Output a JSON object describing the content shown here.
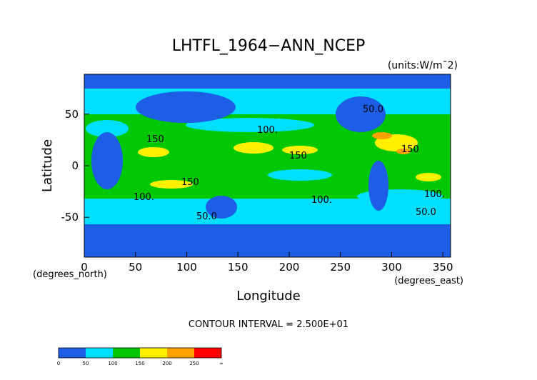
{
  "chart_data": {
    "type": "heatmap",
    "title": "LHTFL_1964−ANN_NCEP",
    "units": "(units:W/m¯2)",
    "xlabel": "Longitude",
    "ylabel": "Latitude",
    "x_units": "(degrees_east)",
    "y_units": "(degrees_north)",
    "xlim": [
      0,
      357.5
    ],
    "ylim": [
      -88,
      88
    ],
    "x_ticks": [
      0,
      50,
      100,
      150,
      200,
      250,
      300,
      350
    ],
    "y_ticks": [
      50,
      0,
      -50
    ],
    "contour_interval_text": "CONTOUR INTERVAL = 2.500E+01",
    "contour_labels": [
      {
        "text": "150",
        "x": 68,
        "y": 26
      },
      {
        "text": "100.",
        "x": 172,
        "y": 36
      },
      {
        "text": "150",
        "x": 207,
        "y": 12
      },
      {
        "text": "150",
        "x": 98,
        "y": -16
      },
      {
        "text": "100.",
        "x": 58,
        "y": -29
      },
      {
        "text": "100.",
        "x": 231,
        "y": -33
      },
      {
        "text": "50.0",
        "x": 120,
        "y": -47
      },
      {
        "text": "150",
        "x": 318,
        "y": 18
      },
      {
        "text": "100.",
        "x": 340,
        "y": -26
      },
      {
        "text": "50.0",
        "x": 333,
        "y": -44
      },
      {
        "text": "50.0",
        "x": 278,
        "y": 57
      }
    ],
    "colorbar": {
      "levels": [
        0,
        50,
        100,
        150,
        200,
        250,
        "∞"
      ],
      "colors": [
        "#1e5ee6",
        "#00dfff",
        "#00c800",
        "#fff000",
        "#ffa200",
        "#ff0000"
      ]
    }
  }
}
